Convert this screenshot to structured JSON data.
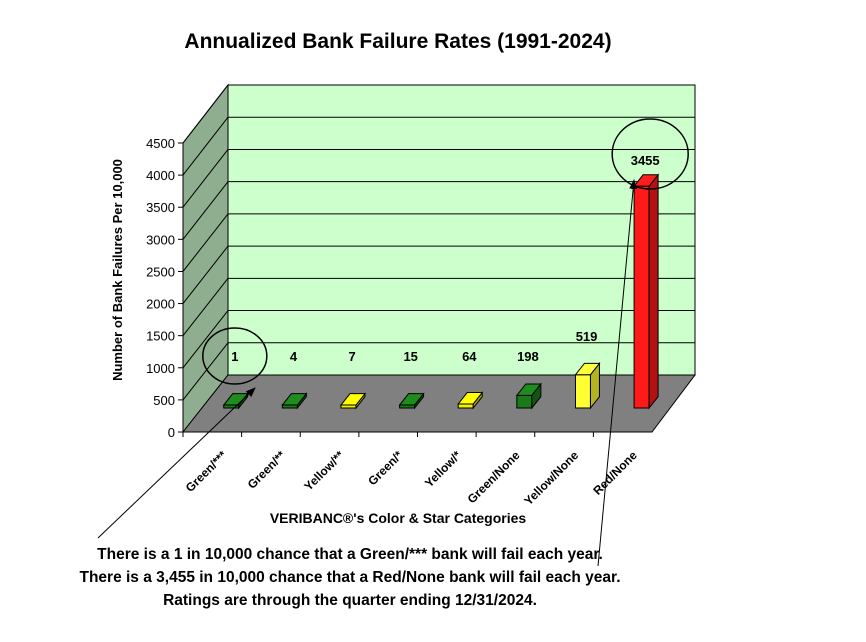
{
  "chart_data": {
    "type": "bar",
    "title": "Annualized Bank Failure Rates (1991-2024)",
    "ylabel": "Number of Bank Failures Per 10,000",
    "xlabel": "VERIBANC®'s Color & Star Categories",
    "categories": [
      "Green/***",
      "Green/**",
      "Yellow/**",
      "Green/*",
      "Yellow/*",
      "Green/None",
      "Yellow/None",
      "Red/None"
    ],
    "values": [
      1,
      4,
      7,
      15,
      64,
      198,
      519,
      3455
    ],
    "data_labels": [
      "1",
      "4",
      "7",
      "15",
      "64",
      "198",
      "519",
      "3455"
    ],
    "bar_colors": [
      "#1a7a1a",
      "#1a7a1a",
      "#f0f000",
      "#1a7a1a",
      "#f0f000",
      "#1a7a1a",
      "#ffff33",
      "#ff1a1a"
    ],
    "ylim": [
      0,
      4500
    ],
    "yticks": [
      0,
      500,
      1000,
      1500,
      2000,
      2500,
      3000,
      3500,
      4000,
      4500
    ],
    "grid": true,
    "wall_color": "#ccffcc",
    "floor_color": "#808080",
    "side_wall_color": "#8fad8f",
    "highlighted": [
      "Green/***",
      "Red/None"
    ]
  },
  "captions": [
    "There is a 1 in 10,000 chance that a Green/*** bank will fail each year.",
    "There is a 3,455 in 10,000 chance that a Red/None bank will fail each year.",
    "Ratings are through the quarter ending 12/31/2024."
  ]
}
